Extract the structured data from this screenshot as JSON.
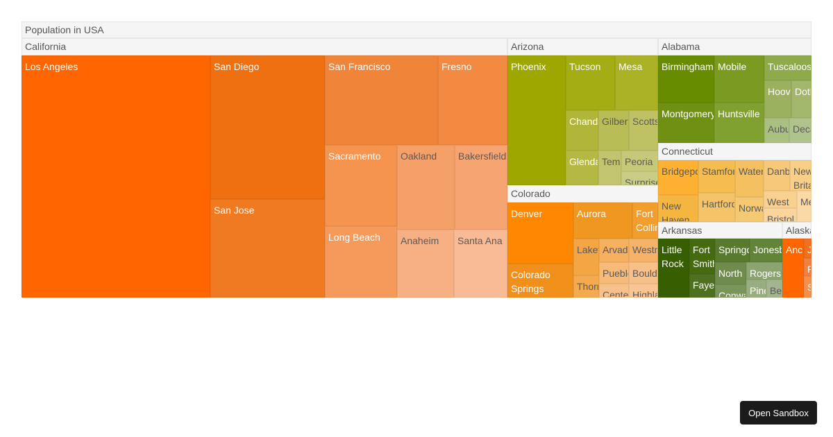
{
  "chart_data": {
    "type": "treemap",
    "title": "Population in USA",
    "groups": [
      {
        "name": "California",
        "tiles": [
          {
            "name": "Los Angeles",
            "color": "#ff6600"
          },
          {
            "name": "San Diego",
            "color": "#ee7010"
          },
          {
            "name": "San Jose",
            "color": "#ef7a22"
          },
          {
            "name": "San Francisco",
            "color": "#f0853a"
          },
          {
            "name": "Fresno",
            "color": "#f28a42"
          },
          {
            "name": "Sacramento",
            "color": "#f4944f"
          },
          {
            "name": "Oakland",
            "color": "#f5a068"
          },
          {
            "name": "Bakersfield",
            "color": "#f6a572"
          },
          {
            "name": "Long Beach",
            "color": "#f59a5a"
          },
          {
            "name": "Anaheim",
            "color": "#f7b083"
          },
          {
            "name": "Santa Ana",
            "color": "#f9bb95"
          }
        ]
      },
      {
        "name": "Arizona",
        "tiles": [
          {
            "name": "Phoenix",
            "color": "#9ea700"
          },
          {
            "name": "Tucson",
            "color": "#a5ad14"
          },
          {
            "name": "Mesa",
            "color": "#abb125"
          },
          {
            "name": "Chandler",
            "color": "#b0b63a"
          },
          {
            "name": "Gilbert",
            "color": "#b9bd55"
          },
          {
            "name": "Scottsdale",
            "color": "#bec265"
          },
          {
            "name": "Glendale",
            "color": "#b4b944"
          },
          {
            "name": "Tempe",
            "color": "#c2c56e"
          },
          {
            "name": "Peoria",
            "color": "#c6c97a"
          },
          {
            "name": "Surprise",
            "color": "#c9cc85"
          }
        ]
      },
      {
        "name": "Colorado",
        "tiles": [
          {
            "name": "Denver",
            "color": "#ff8800"
          },
          {
            "name": "Colorado Springs",
            "color": "#f0901a"
          },
          {
            "name": "Aurora",
            "color": "#f09722"
          },
          {
            "name": "Fort Collins",
            "color": "#f29e2e"
          },
          {
            "name": "Lakewood",
            "color": "#f3a643"
          },
          {
            "name": "Arvada",
            "color": "#f5b060"
          },
          {
            "name": "Westminster",
            "color": "#f6b368"
          },
          {
            "name": "Thornton",
            "color": "#f4ab50"
          },
          {
            "name": "Pueblo",
            "color": "#f7ba78"
          },
          {
            "name": "Boulder",
            "color": "#f8c086"
          },
          {
            "name": "Centennial",
            "color": "#f8c08a"
          },
          {
            "name": "Highlands Ranch",
            "color": "#f9c592"
          }
        ]
      },
      {
        "name": "Alabama",
        "tiles": [
          {
            "name": "Birmingham",
            "color": "#678c00"
          },
          {
            "name": "Montgomery",
            "color": "#6f9012"
          },
          {
            "name": "Mobile",
            "color": "#7a9a22"
          },
          {
            "name": "Huntsville",
            "color": "#80a030"
          },
          {
            "name": "Tuscaloosa",
            "color": "#8eaa4b"
          },
          {
            "name": "Hoover",
            "color": "#9bb160"
          },
          {
            "name": "Dothan",
            "color": "#a2b66c"
          },
          {
            "name": "Auburn",
            "color": "#aabf80"
          },
          {
            "name": "Decatur",
            "color": "#b1c38c"
          }
        ]
      },
      {
        "name": "Connecticut",
        "tiles": [
          {
            "name": "Bridgeport",
            "color": "#ffb132"
          },
          {
            "name": "Stamford",
            "color": "#f5bc50"
          },
          {
            "name": "Waterbury",
            "color": "#f5c060"
          },
          {
            "name": "Danbury",
            "color": "#f7c87a"
          },
          {
            "name": "New Britain",
            "color": "#f9cf88"
          },
          {
            "name": "New Haven",
            "color": "#f4b640"
          },
          {
            "name": "Hartford",
            "color": "#f5c468"
          },
          {
            "name": "Norwalk",
            "color": "#f5c872"
          },
          {
            "name": "West Haven",
            "color": "#f8d090"
          },
          {
            "name": "Meriden",
            "color": "#fbd9a6"
          },
          {
            "name": "Bristol",
            "color": "#f9d49c"
          }
        ]
      },
      {
        "name": "Arkansas",
        "tiles": [
          {
            "name": "Little Rock",
            "color": "#375e00"
          },
          {
            "name": "Fort Smith",
            "color": "#456a10"
          },
          {
            "name": "Fayetteville",
            "color": "#4e7020"
          },
          {
            "name": "Springdale",
            "color": "#577a2c"
          },
          {
            "name": "Jonesboro",
            "color": "#628438"
          },
          {
            "name": "North Little Rock",
            "color": "#6f8c4c"
          },
          {
            "name": "Conway",
            "color": "#7a955a"
          },
          {
            "name": "Rogers",
            "color": "#8ba470"
          },
          {
            "name": "Pine Bluff",
            "color": "#98ae80"
          },
          {
            "name": "Bentonville",
            "color": "#a3b58e"
          }
        ]
      },
      {
        "name": "Alaska",
        "tiles": [
          {
            "name": "Anchorage",
            "color": "#ff6600"
          },
          {
            "name": "Juneau",
            "color": "#f07020"
          },
          {
            "name": "Fairbanks",
            "color": "#f28040"
          },
          {
            "name": "Sitka",
            "color": "#f4904f"
          }
        ]
      }
    ]
  },
  "sandbox_button": {
    "label": "Open Sandbox"
  }
}
